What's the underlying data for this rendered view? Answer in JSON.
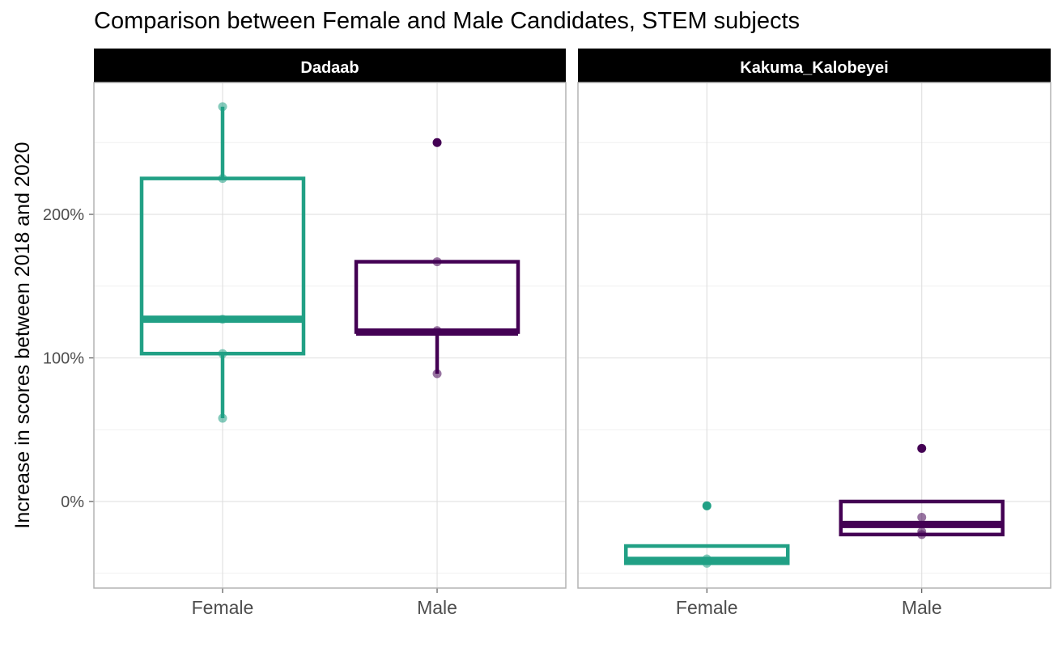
{
  "chart_data": {
    "type": "box",
    "title": "Comparison between Female and Male Candidates, STEM subjects",
    "xlabel": "",
    "ylabel": "Increase in scores between 2018 and 2020",
    "y_ticks": [
      "0%",
      "100%",
      "200%"
    ],
    "y_tick_values": [
      0,
      100,
      200
    ],
    "ylim": [
      -50,
      290
    ],
    "categories": [
      "Female",
      "Male"
    ],
    "colors": {
      "Female": "#21a085",
      "Male": "#440154"
    },
    "grid": true,
    "legend": "none",
    "facets": [
      {
        "name": "Dadaab",
        "boxes": [
          {
            "category": "Female",
            "min": 58,
            "q1": 103,
            "median": 127,
            "q3": 225,
            "max": 275,
            "points": [
              275,
              225,
              127,
              103,
              58
            ],
            "outliers": []
          },
          {
            "category": "Male",
            "min": 89,
            "q1": 118,
            "median": 118,
            "q3": 167,
            "max": 167,
            "points": [
              167,
              119,
              89
            ],
            "outliers": [
              250
            ]
          }
        ]
      },
      {
        "name": "Kakuma_Kalobeyei",
        "boxes": [
          {
            "category": "Female",
            "min": -44,
            "q1": -43,
            "median": -41,
            "q3": -31,
            "max": -31,
            "points": [
              -40,
              -43
            ],
            "outliers": [
              -3
            ]
          },
          {
            "category": "Male",
            "min": -23,
            "q1": -23,
            "median": -16,
            "q3": 0,
            "max": 0,
            "points": [
              -11,
              -21,
              -23
            ],
            "outliers": [
              37
            ]
          }
        ]
      }
    ]
  }
}
